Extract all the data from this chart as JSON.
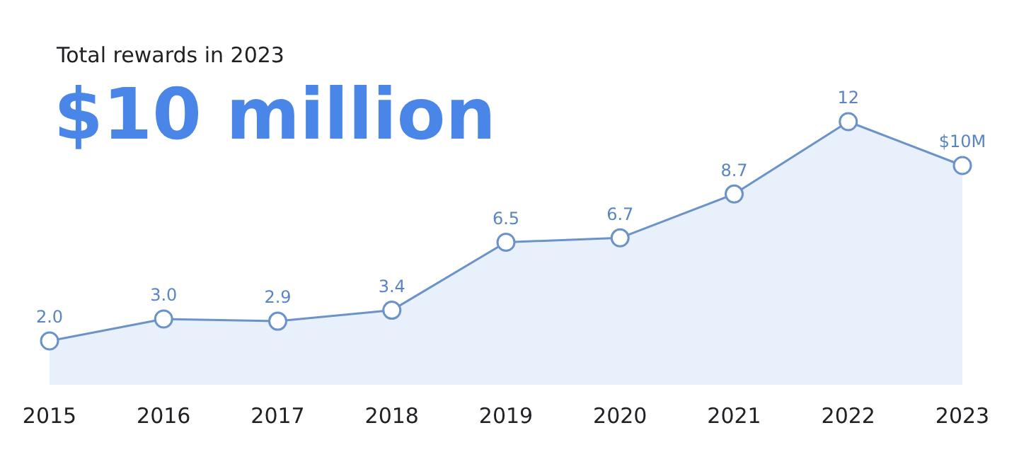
{
  "chart_data": {
    "type": "area",
    "title": "Total rewards in 2023",
    "subtitle": "$10 million",
    "categories": [
      "2015",
      "2016",
      "2017",
      "2018",
      "2019",
      "2020",
      "2021",
      "2022",
      "2023"
    ],
    "series": [
      {
        "color": "#6b93c9",
        "values": [
          2.0,
          3.0,
          2.9,
          3.4,
          6.5,
          6.7,
          8.7,
          12,
          10
        ],
        "value_labels": [
          "2.0",
          "3.0",
          "2.9",
          "3.4",
          "6.5",
          "6.7",
          "8.7",
          "12",
          "$10M"
        ]
      }
    ],
    "tick_labels": "x",
    "grid": false,
    "legend": false,
    "marker": "circle"
  }
}
